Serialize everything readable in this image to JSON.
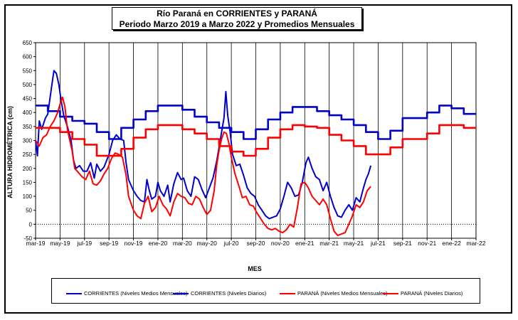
{
  "chart_data": {
    "type": "line",
    "title_line1": "Río Paraná en CORRIENTES  y PARANÁ",
    "title_line2": "Periodo Marzo 2019 a Marzo 2022 y Promedios Mensuales",
    "xlabel": "MES",
    "ylabel": "ALTURA HIDROMÉTRICA (cm)",
    "ylim": [
      -50,
      650
    ],
    "yticks": [
      -50,
      0,
      50,
      100,
      150,
      200,
      250,
      300,
      350,
      400,
      450,
      500,
      550,
      600,
      650
    ],
    "x_tick_labels": [
      "mar-19",
      "may-19",
      "jul-19",
      "sep-19",
      "nov-19",
      "ene-20",
      "mar-20",
      "may-20",
      "jul-20",
      "sep-20",
      "nov-20",
      "ene-21",
      "mar-21",
      "may-21",
      "jul-21",
      "sep-21",
      "nov-21",
      "ene-22",
      "mar-22"
    ],
    "months": 37,
    "series": [
      {
        "name": "CORRIENTES (Niveles Medios Mensuales)",
        "color": "#0000cc",
        "kind": "monthly",
        "values": [
          425,
          405,
          385,
          370,
          360,
          330,
          305,
          345,
          375,
          405,
          425,
          425,
          410,
          385,
          365,
          345,
          330,
          305,
          340,
          375,
          400,
          420,
          420,
          405,
          390,
          375,
          355,
          330,
          305,
          335,
          380,
          380,
          400,
          425,
          415,
          395
        ]
      },
      {
        "name": "CORRIENTES (Niveles Diarios)",
        "color": "#0000cc",
        "kind": "daily",
        "points": [
          [
            0,
            300
          ],
          [
            0.15,
            245
          ],
          [
            0.3,
            370
          ],
          [
            0.5,
            340
          ],
          [
            0.8,
            380
          ],
          [
            1.0,
            395
          ],
          [
            1.3,
            490
          ],
          [
            1.5,
            550
          ],
          [
            1.7,
            540
          ],
          [
            1.9,
            500
          ],
          [
            2.1,
            440
          ],
          [
            2.3,
            390
          ],
          [
            2.6,
            350
          ],
          [
            2.9,
            300
          ],
          [
            3.1,
            230
          ],
          [
            3.3,
            200
          ],
          [
            3.6,
            210
          ],
          [
            3.9,
            190
          ],
          [
            4.2,
            190
          ],
          [
            4.5,
            220
          ],
          [
            4.8,
            165
          ],
          [
            5.0,
            215
          ],
          [
            5.3,
            190
          ],
          [
            5.6,
            205
          ],
          [
            6.0,
            250
          ],
          [
            6.3,
            300
          ],
          [
            6.6,
            320
          ],
          [
            6.9,
            305
          ],
          [
            7.2,
            300
          ],
          [
            7.4,
            220
          ],
          [
            7.6,
            160
          ],
          [
            7.8,
            140
          ],
          [
            8.0,
            120
          ],
          [
            8.3,
            100
          ],
          [
            8.6,
            85
          ],
          [
            8.9,
            80
          ],
          [
            9.1,
            160
          ],
          [
            9.3,
            120
          ],
          [
            9.5,
            90
          ],
          [
            9.8,
            100
          ],
          [
            10.0,
            150
          ],
          [
            10.2,
            120
          ],
          [
            10.5,
            100
          ],
          [
            10.8,
            140
          ],
          [
            11.0,
            80
          ],
          [
            11.3,
            145
          ],
          [
            11.6,
            185
          ],
          [
            11.9,
            160
          ],
          [
            12.1,
            165
          ],
          [
            12.4,
            120
          ],
          [
            12.7,
            100
          ],
          [
            13.0,
            170
          ],
          [
            13.3,
            160
          ],
          [
            13.6,
            125
          ],
          [
            13.9,
            95
          ],
          [
            14.2,
            130
          ],
          [
            14.5,
            165
          ],
          [
            14.8,
            225
          ],
          [
            15.0,
            275
          ],
          [
            15.2,
            330
          ],
          [
            15.4,
            380
          ],
          [
            15.55,
            475
          ],
          [
            15.7,
            390
          ],
          [
            15.9,
            330
          ],
          [
            16.1,
            250
          ],
          [
            16.4,
            210
          ],
          [
            16.7,
            215
          ],
          [
            17.0,
            175
          ],
          [
            17.3,
            130
          ],
          [
            17.6,
            110
          ],
          [
            17.9,
            100
          ],
          [
            18.2,
            70
          ],
          [
            18.5,
            50
          ],
          [
            18.8,
            30
          ],
          [
            19.1,
            20
          ],
          [
            19.4,
            25
          ],
          [
            19.7,
            30
          ],
          [
            20.0,
            55
          ],
          [
            20.3,
            100
          ],
          [
            20.6,
            150
          ],
          [
            20.9,
            130
          ],
          [
            21.2,
            100
          ],
          [
            21.5,
            105
          ],
          [
            21.8,
            150
          ],
          [
            22.1,
            220
          ],
          [
            22.3,
            240
          ],
          [
            22.6,
            200
          ],
          [
            22.9,
            170
          ],
          [
            23.2,
            160
          ],
          [
            23.5,
            120
          ],
          [
            23.8,
            150
          ],
          [
            24.1,
            100
          ],
          [
            24.4,
            60
          ],
          [
            24.7,
            30
          ],
          [
            25.0,
            25
          ],
          [
            25.3,
            50
          ],
          [
            25.6,
            70
          ],
          [
            25.9,
            50
          ],
          [
            26.2,
            95
          ],
          [
            26.5,
            80
          ],
          [
            26.8,
            130
          ],
          [
            27.0,
            160
          ],
          [
            27.2,
            180
          ],
          [
            27.4,
            210
          ]
        ]
      },
      {
        "name": "PARANÁ (Niveles Medios Mensuales)",
        "color": "#ff0000",
        "kind": "monthly",
        "values": [
          345,
          345,
          330,
          305,
          285,
          245,
          245,
          270,
          310,
          340,
          355,
          355,
          340,
          325,
          305,
          280,
          260,
          245,
          270,
          310,
          340,
          355,
          350,
          345,
          320,
          300,
          280,
          250,
          250,
          275,
          305,
          305,
          325,
          355,
          355,
          345
        ]
      },
      {
        "name": "PARANÁ (Niveles Diarios)",
        "color": "#ff0000",
        "kind": "daily",
        "points": [
          [
            0,
            300
          ],
          [
            0.3,
            280
          ],
          [
            0.6,
            310
          ],
          [
            0.9,
            320
          ],
          [
            1.2,
            350
          ],
          [
            1.5,
            370
          ],
          [
            1.8,
            400
          ],
          [
            2.0,
            430
          ],
          [
            2.2,
            455
          ],
          [
            2.4,
            420
          ],
          [
            2.6,
            340
          ],
          [
            2.8,
            300
          ],
          [
            3.0,
            260
          ],
          [
            3.2,
            200
          ],
          [
            3.5,
            185
          ],
          [
            3.8,
            170
          ],
          [
            4.1,
            160
          ],
          [
            4.4,
            190
          ],
          [
            4.7,
            145
          ],
          [
            5.0,
            140
          ],
          [
            5.3,
            155
          ],
          [
            5.6,
            180
          ],
          [
            5.9,
            200
          ],
          [
            6.2,
            235
          ],
          [
            6.5,
            255
          ],
          [
            6.8,
            250
          ],
          [
            7.1,
            240
          ],
          [
            7.4,
            175
          ],
          [
            7.6,
            100
          ],
          [
            7.8,
            75
          ],
          [
            8.0,
            50
          ],
          [
            8.3,
            30
          ],
          [
            8.6,
            20
          ],
          [
            8.9,
            75
          ],
          [
            9.2,
            100
          ],
          [
            9.5,
            45
          ],
          [
            9.8,
            60
          ],
          [
            10.1,
            100
          ],
          [
            10.4,
            70
          ],
          [
            10.7,
            55
          ],
          [
            11.0,
            30
          ],
          [
            11.3,
            80
          ],
          [
            11.6,
            110
          ],
          [
            11.9,
            100
          ],
          [
            12.2,
            95
          ],
          [
            12.5,
            75
          ],
          [
            12.8,
            70
          ],
          [
            13.1,
            100
          ],
          [
            13.4,
            90
          ],
          [
            13.7,
            60
          ],
          [
            14.0,
            35
          ],
          [
            14.3,
            50
          ],
          [
            14.6,
            120
          ],
          [
            14.8,
            210
          ],
          [
            15.0,
            265
          ],
          [
            15.2,
            305
          ],
          [
            15.4,
            330
          ],
          [
            15.6,
            325
          ],
          [
            15.8,
            290
          ],
          [
            16.0,
            240
          ],
          [
            16.3,
            180
          ],
          [
            16.6,
            140
          ],
          [
            16.9,
            95
          ],
          [
            17.2,
            100
          ],
          [
            17.5,
            70
          ],
          [
            17.8,
            65
          ],
          [
            18.1,
            40
          ],
          [
            18.4,
            20
          ],
          [
            18.7,
            0
          ],
          [
            19.0,
            -15
          ],
          [
            19.3,
            -20
          ],
          [
            19.6,
            -15
          ],
          [
            19.9,
            -25
          ],
          [
            20.2,
            -30
          ],
          [
            20.5,
            -20
          ],
          [
            20.8,
            0
          ],
          [
            21.1,
            -10
          ],
          [
            21.4,
            60
          ],
          [
            21.7,
            145
          ],
          [
            22.0,
            150
          ],
          [
            22.3,
            130
          ],
          [
            22.6,
            100
          ],
          [
            22.9,
            85
          ],
          [
            23.2,
            70
          ],
          [
            23.5,
            90
          ],
          [
            23.8,
            70
          ],
          [
            24.1,
            20
          ],
          [
            24.4,
            -25
          ],
          [
            24.7,
            -40
          ],
          [
            25.0,
            -35
          ],
          [
            25.3,
            -30
          ],
          [
            25.6,
            0
          ],
          [
            25.9,
            30
          ],
          [
            26.2,
            70
          ],
          [
            26.5,
            60
          ],
          [
            26.8,
            80
          ],
          [
            27.1,
            120
          ],
          [
            27.4,
            135
          ]
        ]
      }
    ]
  }
}
